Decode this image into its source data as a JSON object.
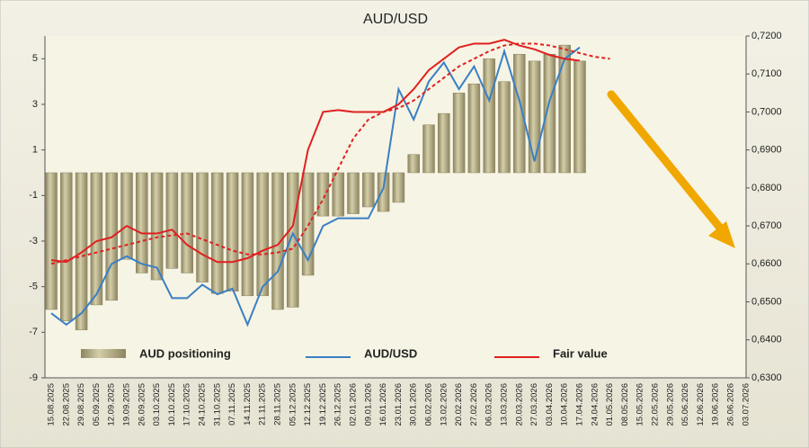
{
  "chart_data": {
    "type": "combo",
    "title": "AUD/USD",
    "categories": [
      "15.08.2025",
      "22.08.2025",
      "29.08.2025",
      "05.09.2025",
      "12.09.2025",
      "19.09.2025",
      "26.09.2025",
      "03.10.2025",
      "10.10.2025",
      "17.10.2025",
      "24.10.2025",
      "31.10.2025",
      "07.11.2025",
      "14.11.2025",
      "21.11.2025",
      "28.11.2025",
      "05.12.2025",
      "12.12.2025",
      "19.12.2025",
      "26.12.2025",
      "02.01.2026",
      "09.01.2026",
      "16.01.2026",
      "23.01.2026",
      "30.01.2026",
      "06.02.2026",
      "13.02.2026",
      "20.02.2026",
      "27.02.2026",
      "06.03.2026",
      "13.03.2026",
      "20.03.2026",
      "27.03.2026",
      "03.04.2026",
      "10.04.2026",
      "17.04.2026",
      "24.04.2026",
      "01.05.2026",
      "08.05.2026",
      "15.05.2026",
      "22.05.2026",
      "29.05.2026",
      "05.06.2026",
      "12.06.2026",
      "19.06.2026",
      "26.06.2026",
      "03.07.2026"
    ],
    "series": [
      {
        "name": "AUD positioning",
        "kind": "bar",
        "color": "#b5ad85",
        "values": [
          -6,
          -6.5,
          -6.9,
          -5.8,
          -5.6,
          -3.8,
          -4.4,
          -4.7,
          -4.2,
          -4.4,
          -4.8,
          -5.3,
          -5.2,
          -5.4,
          -5.4,
          -6,
          -5.9,
          -4.5,
          -1.9,
          -1.9,
          -1.8,
          -1.5,
          -1.7,
          -1.3,
          0.8,
          2.1,
          2.6,
          3.5,
          3.9,
          5,
          4,
          5.2,
          4.9,
          5.2,
          5.6,
          4.9,
          null,
          null,
          null,
          null,
          null,
          null,
          null,
          null,
          null,
          null,
          null
        ]
      },
      {
        "name": "AUD/USD",
        "kind": "line",
        "axis": "y2",
        "color": "#3a7fc4",
        "values": [
          0.647,
          0.644,
          0.647,
          0.652,
          0.66,
          0.662,
          0.66,
          0.659,
          0.651,
          0.651,
          0.6545,
          0.652,
          0.6535,
          0.644,
          0.654,
          0.658,
          0.668,
          0.661,
          0.67,
          0.672,
          0.672,
          0.672,
          0.68,
          0.706,
          0.698,
          0.708,
          0.713,
          0.706,
          0.712,
          0.703,
          0.716,
          0.703,
          0.687,
          0.703,
          0.714,
          0.717,
          null,
          null,
          null,
          null,
          null,
          null,
          null,
          null,
          null,
          null,
          null
        ]
      },
      {
        "name": "Fair value",
        "kind": "line",
        "axis": "y2",
        "color": "#e02020",
        "values": [
          0.661,
          0.6605,
          0.663,
          0.666,
          0.667,
          0.67,
          0.668,
          0.668,
          0.669,
          0.665,
          0.6625,
          0.6605,
          0.6605,
          0.6615,
          0.6635,
          0.665,
          0.67,
          0.69,
          0.7,
          0.7005,
          0.7,
          0.7,
          0.7,
          0.702,
          0.706,
          0.711,
          0.714,
          0.717,
          0.718,
          0.718,
          0.719,
          0.7175,
          0.7165,
          0.715,
          0.714,
          0.7135,
          null,
          null,
          null,
          null,
          null,
          null,
          null,
          null,
          null,
          null,
          null
        ]
      },
      {
        "kind": "line",
        "axis": "y2",
        "dashed": true,
        "color": "#e02020",
        "values": [
          0.66,
          0.661,
          0.662,
          0.663,
          0.664,
          0.665,
          0.666,
          0.667,
          0.6675,
          0.668,
          0.6665,
          0.665,
          0.6635,
          0.6625,
          0.6625,
          0.663,
          0.664,
          0.67,
          0.677,
          0.685,
          0.693,
          0.698,
          0.7,
          0.701,
          0.703,
          0.706,
          0.709,
          0.712,
          0.714,
          0.716,
          0.7175,
          0.718,
          0.718,
          0.7175,
          0.7165,
          0.7155,
          0.7145,
          0.714,
          null,
          null,
          null,
          null,
          null,
          null,
          null,
          null,
          null
        ]
      }
    ],
    "ylim": [
      -9,
      6
    ],
    "yticks": [
      -9,
      -7,
      -5,
      -3,
      -1,
      1,
      3,
      5
    ],
    "y2lim": [
      0.63,
      0.72
    ],
    "y2ticks": [
      {
        "value": 0.63,
        "label": "0,6300"
      },
      {
        "value": 0.64,
        "label": "0,6400"
      },
      {
        "value": 0.65,
        "label": "0,6500"
      },
      {
        "value": 0.66,
        "label": "0,6600"
      },
      {
        "value": 0.67,
        "label": "0,6700"
      },
      {
        "value": 0.68,
        "label": "0,6800"
      },
      {
        "value": 0.69,
        "label": "0,6900"
      },
      {
        "value": 0.7,
        "label": "0,7000"
      },
      {
        "value": 0.71,
        "label": "0,7100"
      },
      {
        "value": 0.72,
        "label": "0,7200"
      }
    ],
    "grid": false
  }
}
